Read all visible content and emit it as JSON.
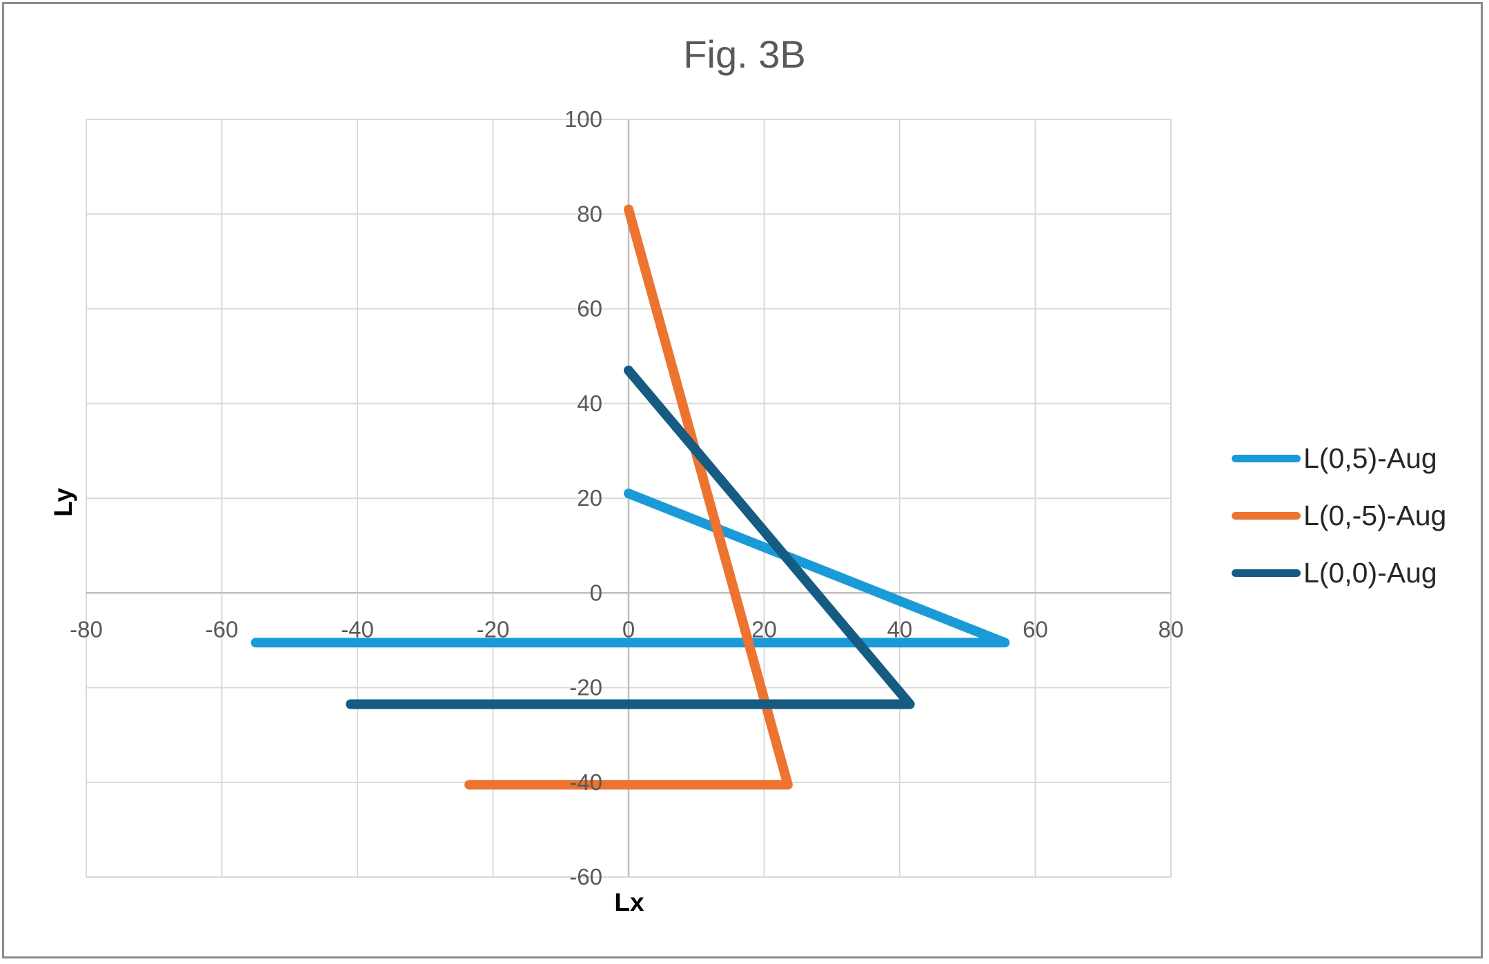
{
  "chart_data": {
    "type": "scatter",
    "title": "Fig. 3B",
    "xlabel": "Lx",
    "ylabel": "Ly",
    "xlim": [
      -80,
      80
    ],
    "ylim": [
      -60,
      100
    ],
    "x_ticks": [
      -80,
      -60,
      -40,
      -20,
      0,
      20,
      40,
      60,
      80
    ],
    "y_ticks": [
      -60,
      -40,
      -20,
      0,
      20,
      40,
      60,
      80,
      100
    ],
    "x_tick_labels": [
      "-80",
      "-60",
      "-40",
      "-20",
      "0",
      "20",
      "40",
      "60",
      "80"
    ],
    "y_tick_labels": [
      "-60",
      "-40",
      "-20",
      "0",
      "20",
      "40",
      "60",
      "80",
      "100"
    ],
    "grid": true,
    "legend_position": "right",
    "series": [
      {
        "name": "L(0,5)-Aug",
        "color": "#1a9bd7",
        "points": [
          [
            0,
            21
          ],
          [
            55.5,
            -10.5
          ],
          [
            -55,
            -10.5
          ]
        ]
      },
      {
        "name": "L(0,-5)-Aug",
        "color": "#ec7430",
        "points": [
          [
            0,
            81
          ],
          [
            23.5,
            -40.5
          ],
          [
            -23.5,
            -40.5
          ]
        ]
      },
      {
        "name": "L(0,0)-Aug",
        "color": "#155b82",
        "points": [
          [
            0,
            47
          ],
          [
            41.5,
            -23.5
          ],
          [
            -41,
            -23.5
          ]
        ]
      }
    ]
  }
}
